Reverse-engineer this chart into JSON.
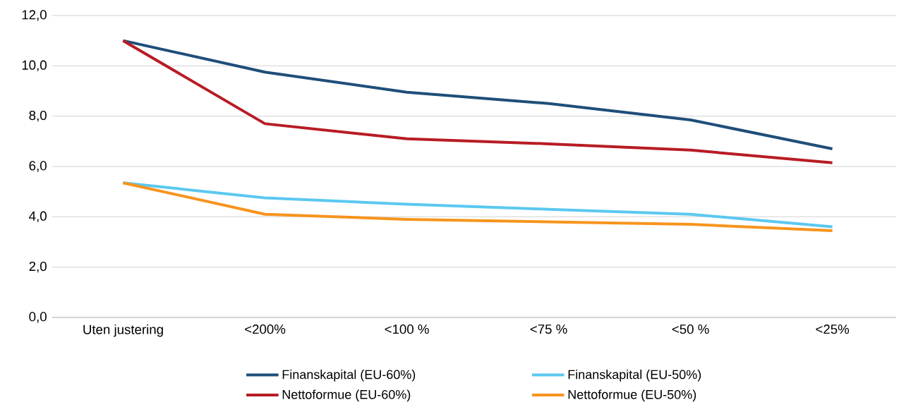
{
  "chart_data": {
    "type": "line",
    "categories": [
      "Uten justering",
      "<200%",
      "<100 %",
      "<75 %",
      "<50 %",
      "<25%"
    ],
    "series": [
      {
        "name": "Finanskapital (EU-60%)",
        "color": "#1f4e79",
        "values": [
          11.0,
          9.75,
          8.95,
          8.5,
          7.85,
          6.7
        ]
      },
      {
        "name": "Finanskapital (EU-50%)",
        "color": "#5bc8f0",
        "values": [
          5.35,
          4.75,
          4.5,
          4.3,
          4.1,
          3.6
        ]
      },
      {
        "name": "Nettoformue (EU-60%)",
        "color": "#b81c24",
        "values": [
          11.0,
          7.7,
          7.1,
          6.9,
          6.65,
          6.15
        ]
      },
      {
        "name": "Nettoformue (EU-50%)",
        "color": "#f7941d",
        "values": [
          5.35,
          4.1,
          3.9,
          3.8,
          3.7,
          3.45
        ]
      }
    ],
    "ylim": [
      0,
      12
    ],
    "yticks": [
      {
        "value": 0,
        "label": "0,0"
      },
      {
        "value": 2,
        "label": "2,0"
      },
      {
        "value": 4,
        "label": "4,0"
      },
      {
        "value": 6,
        "label": "6,0"
      },
      {
        "value": 8,
        "label": "8,0"
      },
      {
        "value": 10,
        "label": "10,0"
      },
      {
        "value": 12,
        "label": "12,0"
      }
    ],
    "grid": "y",
    "legend": "bottom",
    "marker": "none",
    "line_style": "solid"
  }
}
